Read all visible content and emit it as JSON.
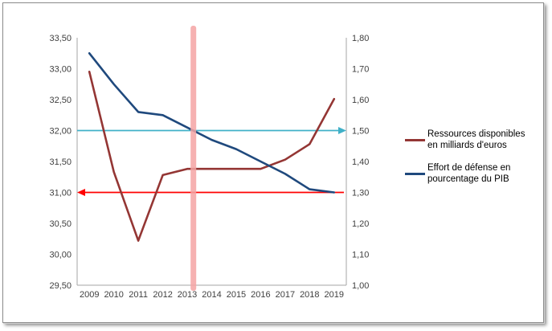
{
  "chart_data": {
    "type": "line",
    "categories": [
      "2009",
      "2010",
      "2011",
      "2012",
      "2013",
      "2014",
      "2015",
      "2016",
      "2017",
      "2018",
      "2019"
    ],
    "series": [
      {
        "name": "Ressources disponibles en milliards d'euros",
        "axis": "left",
        "color": "#943634",
        "values": [
          32.95,
          31.33,
          30.22,
          31.28,
          31.38,
          31.38,
          31.38,
          31.38,
          31.53,
          31.78,
          32.51
        ]
      },
      {
        "name": "Effort de défense en pourcentage du PIB",
        "axis": "right",
        "color": "#1F497D",
        "values": [
          1.75,
          1.65,
          1.56,
          1.55,
          1.51,
          1.47,
          1.44,
          1.4,
          1.36,
          1.31,
          1.3
        ]
      }
    ],
    "left_axis": {
      "min": 29.5,
      "max": 33.5,
      "step": 0.5,
      "tick_values": [
        33.5,
        33.0,
        32.5,
        32.0,
        31.5,
        31.0,
        30.5,
        30.0,
        29.5
      ],
      "tick_labels": [
        "33,50",
        "33,00",
        "32,50",
        "32,00",
        "31,50",
        "31,00",
        "30,50",
        "30,00",
        "29,50"
      ]
    },
    "right_axis": {
      "min": 1.0,
      "max": 1.8,
      "step": 0.1,
      "tick_values": [
        1.8,
        1.7,
        1.6,
        1.5,
        1.4,
        1.3,
        1.2,
        1.1,
        1.0
      ],
      "tick_labels": [
        "1,80",
        "1,70",
        "1,60",
        "1,50",
        "1,40",
        "1,30",
        "1,20",
        "1,10",
        "1,00"
      ]
    },
    "annotations": {
      "teal_arrow": {
        "value_left_axis": 32.0,
        "direction": "right",
        "color": "#40B0C8"
      },
      "red_arrow": {
        "value_left_axis": 31.0,
        "direction": "left",
        "color": "#FF0000"
      },
      "pink_band": {
        "x_index": 4.25,
        "color": "#F5A3A3"
      }
    },
    "legend": [
      {
        "label": "Ressources disponibles en milliards d'euros",
        "color": "#943634"
      },
      {
        "label": "Effort de défense en pourcentage du PIB",
        "color": "#1F497D"
      }
    ],
    "title": "",
    "xlabel": "",
    "ylabel": "",
    "grid": false,
    "legend_position": "right"
  }
}
